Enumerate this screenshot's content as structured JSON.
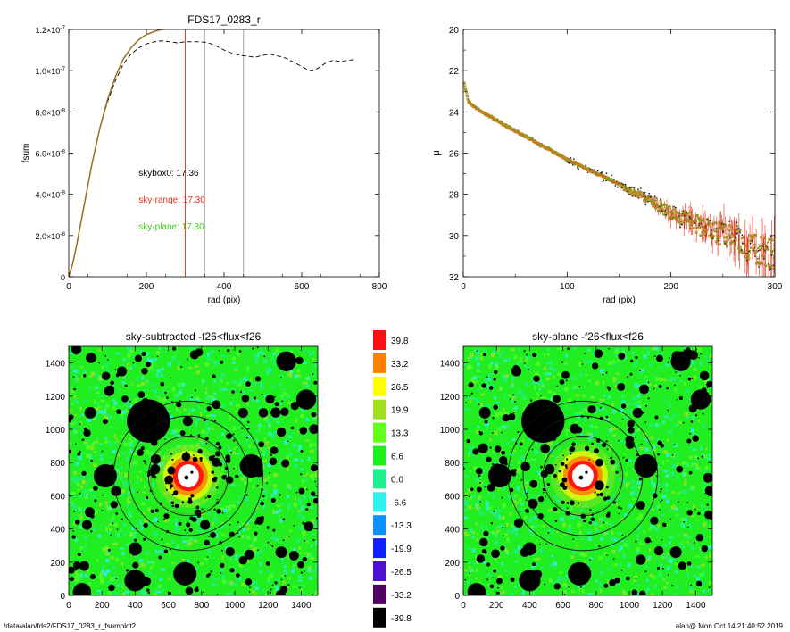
{
  "footer": {
    "path": "/data/alan/fds2/FDS17_0283_r_fsumplot2",
    "stamp": "alan@  Mon Oct 14 21:40:52 2019"
  },
  "chart_data": [
    {
      "id": "fsum",
      "type": "line",
      "title": "FDS17_0283_r",
      "xlabel": "rad (pix)",
      "ylabel": "fsum",
      "xlim": [
        0,
        800
      ],
      "ylim": [
        0,
        1.2e-07
      ],
      "xticks": [
        0,
        200,
        400,
        600,
        800
      ],
      "yticks": [
        {
          "v": 0,
          "m": "0",
          "e": ""
        },
        {
          "v": 2e-08,
          "m": "2.0×10",
          "e": "-8"
        },
        {
          "v": 4e-08,
          "m": "4.0×10",
          "e": "-8"
        },
        {
          "v": 6e-08,
          "m": "6.0×10",
          "e": "-8"
        },
        {
          "v": 8e-08,
          "m": "8.0×10",
          "e": "-8"
        },
        {
          "v": 1e-07,
          "m": "1.0×10",
          "e": "-7"
        },
        {
          "v": 1.2e-07,
          "m": "1.2×10",
          "e": "-7"
        }
      ],
      "vlines": [
        {
          "x": 300,
          "color": "#e03020"
        },
        {
          "x": 350,
          "color": "#999999"
        },
        {
          "x": 450,
          "color": "#999999"
        }
      ],
      "series": [
        {
          "color": "#000000",
          "dash": true,
          "x": [
            0,
            10,
            20,
            40,
            60,
            80,
            100,
            120,
            140,
            160,
            180,
            200,
            220,
            240,
            260,
            280,
            300,
            320,
            340,
            360,
            380,
            400,
            420,
            440,
            460,
            480,
            500,
            520,
            540,
            560,
            580,
            600,
            620,
            640,
            660,
            680,
            700,
            720,
            740
          ],
          "y": [
            0,
            6e-09,
            1.5e-08,
            3.5e-08,
            5.5e-08,
            7.2e-08,
            8.5e-08,
            9.5e-08,
            1.03e-07,
            1.08e-07,
            1.11e-07,
            1.13e-07,
            1.14e-07,
            1.145e-07,
            1.14e-07,
            1.135e-07,
            1.14e-07,
            1.14e-07,
            1.14e-07,
            1.135e-07,
            1.12e-07,
            1.1e-07,
            1.085e-07,
            1.075e-07,
            1.07e-07,
            1.065e-07,
            1.075e-07,
            1.08e-07,
            1.07e-07,
            1.06e-07,
            1.04e-07,
            1.02e-07,
            1e-07,
            1.01e-07,
            1.035e-07,
            1.05e-07,
            1.045e-07,
            1.05e-07,
            1.055e-07
          ]
        },
        {
          "color": "#e03020",
          "dash": false,
          "x": [
            0,
            10,
            20,
            40,
            60,
            80,
            100,
            120,
            140,
            160,
            180,
            200,
            220,
            240,
            260,
            280,
            300
          ],
          "y": [
            0,
            6e-09,
            1.5e-08,
            3.5e-08,
            5.5e-08,
            7.2e-08,
            8.6e-08,
            9.7e-08,
            1.055e-07,
            1.11e-07,
            1.15e-07,
            1.175e-07,
            1.19e-07,
            1.2e-07,
            1.205e-07,
            1.21e-07,
            1.215e-07
          ]
        },
        {
          "color": "#44bb22",
          "dash": false,
          "x": [
            0,
            10,
            20,
            40,
            60,
            80,
            100,
            120,
            140,
            160,
            180,
            200,
            220,
            240,
            260,
            280,
            300
          ],
          "y": [
            0,
            6e-09,
            1.5e-08,
            3.5e-08,
            5.5e-08,
            7.2e-08,
            8.6e-08,
            9.7e-08,
            1.055e-07,
            1.11e-07,
            1.15e-07,
            1.175e-07,
            1.19e-07,
            1.2e-07,
            1.205e-07,
            1.21e-07,
            1.215e-07
          ]
        }
      ],
      "annotations": [
        {
          "text": "skybox0: 17.36",
          "color": "#000000",
          "x": 180,
          "y": 4.9e-08
        },
        {
          "text": "sky-range: 17.30",
          "color": "#e03020",
          "x": 180,
          "y": 3.6e-08
        },
        {
          "text": "sky-plane: 17.30",
          "color": "#44cc22",
          "x": 180,
          "y": 2.3e-08
        }
      ]
    },
    {
      "id": "mu",
      "type": "scatter",
      "title": "",
      "xlabel": "rad (pix)",
      "ylabel": "μ",
      "xlim": [
        0,
        300
      ],
      "ylim": [
        32,
        20
      ],
      "xticks": [
        0,
        100,
        200,
        300
      ],
      "yticks": [
        20,
        22,
        24,
        26,
        28,
        30,
        32
      ],
      "model": {
        "x": [
          1,
          5,
          10,
          20,
          40,
          60,
          80,
          100,
          120,
          140,
          160,
          180,
          200,
          220,
          240,
          260,
          280,
          300
        ],
        "mu": [
          22.6,
          23.5,
          23.75,
          24.05,
          24.65,
          25.2,
          25.75,
          26.3,
          26.8,
          27.25,
          27.8,
          28.3,
          28.9,
          29.3,
          29.8,
          30.1,
          30.6,
          31.0
        ],
        "scatter_start": 140,
        "scatter_amp": 0.8,
        "error_start": 160,
        "error_amp": 1.2,
        "step": 0.5
      }
    },
    {
      "id": "sky-subtracted",
      "type": "heatmap",
      "title": "sky-subtracted -f26<flux<f26",
      "xlim": [
        0,
        1500
      ],
      "ylim": [
        0,
        1500
      ],
      "xticks": [
        0,
        200,
        400,
        600,
        800,
        1000,
        1200,
        1400
      ],
      "yticks": [
        0,
        200,
        400,
        600,
        800,
        1000,
        1200,
        1400
      ],
      "center": [
        720,
        720
      ],
      "rings": [
        240,
        360,
        450
      ],
      "masks": [
        {
          "x": 480,
          "y": 1050,
          "r": 130
        },
        {
          "x": 1310,
          "y": 1410,
          "r": 60
        },
        {
          "x": 1430,
          "y": 1180,
          "r": 60
        },
        {
          "x": 220,
          "y": 720,
          "r": 70
        },
        {
          "x": 1100,
          "y": 780,
          "r": 70
        },
        {
          "x": 700,
          "y": 130,
          "r": 70
        },
        {
          "x": 400,
          "y": 90,
          "r": 65
        },
        {
          "x": 80,
          "y": 20,
          "r": 55
        },
        {
          "x": 400,
          "y": 280,
          "r": 40
        },
        {
          "x": 130,
          "y": 1100,
          "r": 35
        },
        {
          "x": 1050,
          "y": 1100,
          "r": 30
        },
        {
          "x": 1280,
          "y": 260,
          "r": 35
        },
        {
          "x": 520,
          "y": 760,
          "r": 30
        },
        {
          "x": 320,
          "y": 1350,
          "r": 30
        },
        {
          "x": 1150,
          "y": 450,
          "r": 25
        }
      ]
    },
    {
      "id": "sky-plane",
      "type": "heatmap",
      "title": "sky-plane -f26<flux<f26",
      "xlim": [
        0,
        1500
      ],
      "ylim": [
        0,
        1500
      ],
      "xticks": [
        0,
        200,
        400,
        600,
        800,
        1000,
        1200,
        1400
      ],
      "yticks": [
        0,
        200,
        400,
        600,
        800,
        1000,
        1200,
        1400
      ],
      "center": [
        720,
        720
      ],
      "rings": [
        240,
        360,
        450
      ],
      "masks": [
        {
          "x": 480,
          "y": 1050,
          "r": 130
        },
        {
          "x": 1310,
          "y": 1410,
          "r": 60
        },
        {
          "x": 1430,
          "y": 1180,
          "r": 60
        },
        {
          "x": 220,
          "y": 720,
          "r": 70
        },
        {
          "x": 1100,
          "y": 780,
          "r": 70
        },
        {
          "x": 700,
          "y": 130,
          "r": 70
        },
        {
          "x": 400,
          "y": 90,
          "r": 65
        },
        {
          "x": 80,
          "y": 20,
          "r": 55
        },
        {
          "x": 400,
          "y": 280,
          "r": 40
        },
        {
          "x": 130,
          "y": 1100,
          "r": 35
        },
        {
          "x": 1050,
          "y": 1100,
          "r": 30
        },
        {
          "x": 1280,
          "y": 260,
          "r": 35
        },
        {
          "x": 520,
          "y": 760,
          "r": 30
        },
        {
          "x": 320,
          "y": 1350,
          "r": 30
        },
        {
          "x": 1150,
          "y": 450,
          "r": 25
        }
      ]
    },
    {
      "id": "colorbar",
      "type": "legend",
      "entries": [
        {
          "label": "39.8",
          "color": "#ff1010"
        },
        {
          "label": "33.2",
          "color": "#ff8000"
        },
        {
          "label": "26.5",
          "color": "#ffff00"
        },
        {
          "label": "19.9",
          "color": "#a0e020"
        },
        {
          "label": "13.3",
          "color": "#60ff20"
        },
        {
          "label": "6.6",
          "color": "#20ee20"
        },
        {
          "label": "0.0",
          "color": "#20ee90"
        },
        {
          "label": "-6.6",
          "color": "#30f0f0"
        },
        {
          "label": "-13.3",
          "color": "#1090ff"
        },
        {
          "label": "-19.9",
          "color": "#1020ff"
        },
        {
          "label": "-26.5",
          "color": "#5010d0"
        },
        {
          "label": "-33.2",
          "color": "#500060"
        },
        {
          "label": "-39.8",
          "color": "#000000"
        }
      ]
    }
  ]
}
